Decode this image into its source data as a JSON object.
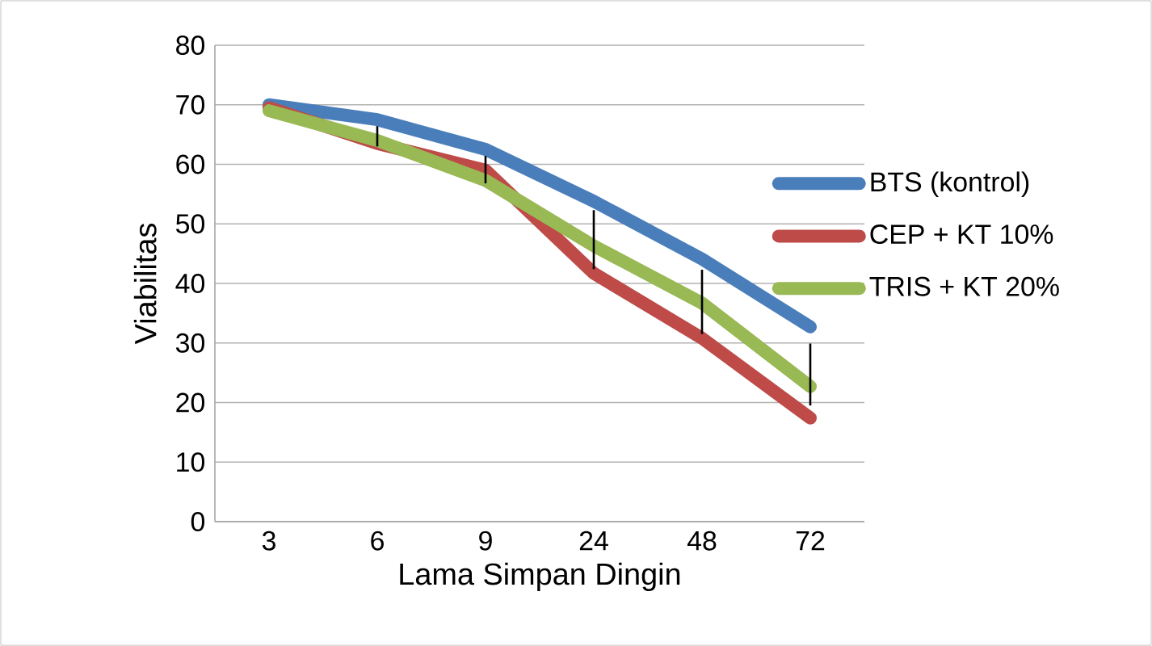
{
  "chart_data": {
    "type": "line",
    "xlabel": "Lama Simpan Dingin",
    "ylabel": "Viabilitas",
    "categories": [
      "3",
      "6",
      "9",
      "24",
      "48",
      "72"
    ],
    "series": [
      {
        "name": "BTS (kontrol)",
        "color": "#4a7ebb",
        "values": [
          70,
          67.5,
          62.5,
          53.8,
          44.1,
          32.7
        ]
      },
      {
        "name": "CEP + KT 10%",
        "color": "#be4b48",
        "values": [
          69.5,
          63.5,
          59,
          41.7,
          30.8,
          17.4
        ]
      },
      {
        "name": "TRIS + KT 20%",
        "color": "#98b954",
        "values": [
          69,
          64,
          57.3,
          46.3,
          36.7,
          22.7
        ],
        "errors": [
          null,
          [
            63,
            66.4
          ],
          [
            56.8,
            61.4
          ],
          [
            42.4,
            52.3
          ],
          [
            31.5,
            42.3
          ],
          [
            19.5,
            29.9
          ]
        ]
      }
    ],
    "ylim": [
      0,
      80
    ],
    "yticks": [
      0,
      10,
      20,
      30,
      40,
      50,
      60,
      70,
      80
    ],
    "grid": "y",
    "legend": "right"
  }
}
